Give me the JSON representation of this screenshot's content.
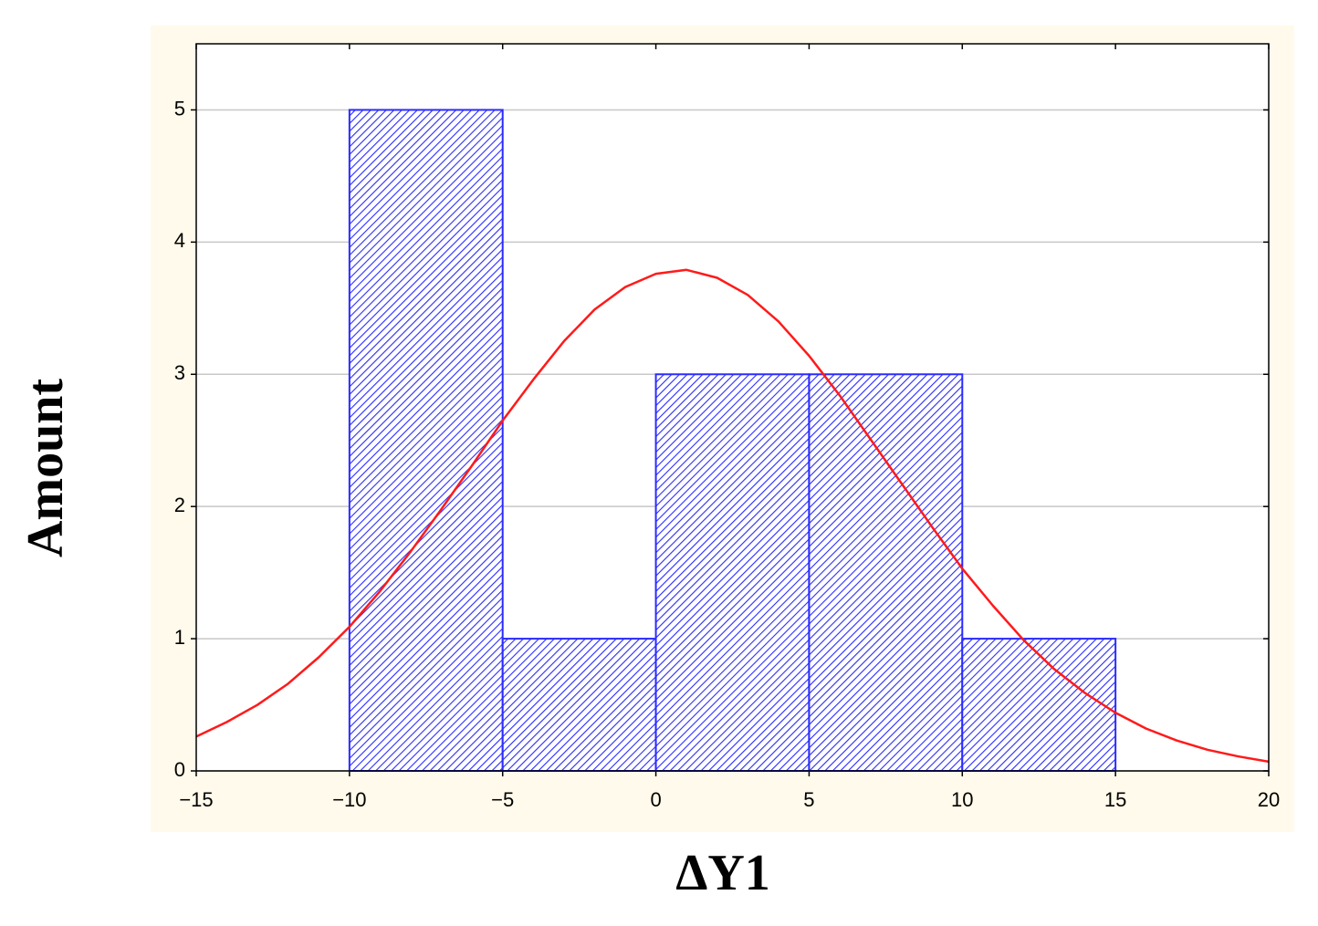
{
  "chart_data": {
    "type": "histogram",
    "x_label": "ΔY1",
    "y_label": "Amount",
    "bins": [
      -10,
      -5,
      0,
      5,
      10,
      15
    ],
    "values": [
      5,
      1,
      3,
      3,
      1
    ],
    "color": "#2b2bff",
    "curve": {
      "color": "#ff1a1a",
      "x": [
        -15,
        -14,
        -13,
        -12,
        -11,
        -10,
        -9,
        -8,
        -7,
        -6,
        -5,
        -4,
        -3,
        -2,
        -1,
        0,
        1,
        2,
        3,
        4,
        5,
        6,
        7,
        8,
        9,
        10,
        11,
        12,
        13,
        14,
        15,
        16,
        17,
        18,
        19,
        20
      ],
      "values": [
        0.26,
        0.37,
        0.5,
        0.66,
        0.86,
        1.09,
        1.36,
        1.66,
        1.98,
        2.31,
        2.65,
        2.96,
        3.25,
        3.49,
        3.66,
        3.76,
        3.79,
        3.73,
        3.6,
        3.4,
        3.14,
        2.84,
        2.51,
        2.18,
        1.85,
        1.53,
        1.25,
        0.99,
        0.77,
        0.59,
        0.44,
        0.32,
        0.23,
        0.16,
        0.11,
        0.07
      ]
    },
    "xlim": [
      -15,
      20
    ],
    "xticks": [
      {
        "value": -15,
        "label": "−15"
      },
      {
        "value": -10,
        "label": "−10"
      },
      {
        "value": -5,
        "label": "−5"
      },
      0,
      5,
      10,
      15,
      20
    ],
    "ylim": [
      0,
      5.5
    ],
    "yticks": [
      0,
      1,
      2,
      3,
      4,
      5
    ],
    "grid": true
  }
}
